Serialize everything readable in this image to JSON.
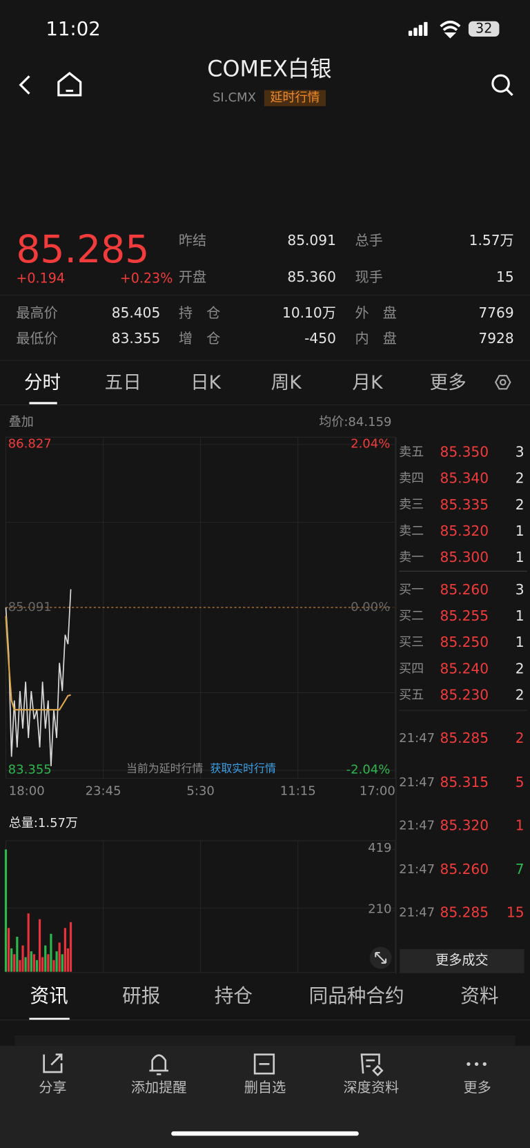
{
  "status_bar": {
    "time": "11:02",
    "battery": "32"
  },
  "header": {
    "title": "COMEX白银",
    "code": "SI.CMX",
    "badge": "延时行情"
  },
  "quote": {
    "price": "85.285",
    "change": "+0.194",
    "change_pct": "+0.23%",
    "stats": [
      {
        "label": "昨结",
        "value": "85.091"
      },
      {
        "label": "总手",
        "value": "1.57万"
      },
      {
        "label": "开盘",
        "value": "85.360"
      },
      {
        "label": "现手",
        "value": "15"
      },
      {
        "label": "最高价",
        "value": "85.405"
      },
      {
        "label": "持　仓",
        "value": "10.10万"
      },
      {
        "label": "外　盘",
        "value": "7769"
      },
      {
        "label": "最低价",
        "value": "83.355"
      },
      {
        "label": "增　仓",
        "value": "-450"
      },
      {
        "label": "内　盘",
        "value": "7928"
      }
    ]
  },
  "chart_tabs": [
    "分时",
    "五日",
    "日K",
    "周K",
    "月K",
    "更多"
  ],
  "price_chart": {
    "type": "line",
    "overlay_label": "叠加",
    "avg_label": "均价:84.159",
    "notice": "当前为延时行情",
    "notice_link": "获取实时行情",
    "x": [
      0,
      10,
      20,
      30,
      40,
      50,
      60,
      70,
      80,
      90,
      100,
      110,
      120,
      130,
      140,
      150,
      160,
      170,
      180,
      190,
      200,
      210,
      220,
      230
    ],
    "values": [
      85.09,
      84.6,
      83.5,
      84.1,
      83.6,
      84.2,
      83.8,
      84.3,
      83.7,
      84.2,
      83.9,
      84.0,
      83.6,
      84.3,
      83.8,
      84.1,
      83.4,
      84.0,
      83.7,
      84.5,
      84.2,
      84.8,
      84.7,
      85.285
    ],
    "avg_values": [
      85.0,
      84.5,
      84.1,
      84.0,
      84.0,
      84.0,
      84.0,
      84.0,
      84.0,
      84.0,
      84.0,
      84.0,
      84.0,
      84.0,
      84.0,
      84.0,
      84.0,
      84.0,
      84.0,
      84.0,
      84.05,
      84.1,
      84.15,
      84.159
    ],
    "color": "#d9d9d9",
    "avg_color": "#e0a84a",
    "xlim": [
      0,
      1380
    ],
    "xticks": [
      {
        "value": 0,
        "label": "18:00"
      },
      {
        "value": 345,
        "label": "23:45"
      },
      {
        "value": 690,
        "label": "5:30"
      },
      {
        "value": 1035,
        "label": "11:15"
      },
      {
        "value": 1380,
        "label": "17:00"
      }
    ],
    "ylim": [
      83.355,
      86.827
    ],
    "yticks": [
      86.827,
      85.091,
      83.355
    ],
    "y2lim": [
      -2.04,
      2.04
    ],
    "y2ticks": [
      {
        "value": 2.04,
        "label": "2.04%"
      },
      {
        "value": 0,
        "label": "0.00%"
      },
      {
        "value": -2.04,
        "label": "-2.04%"
      }
    ]
  },
  "volume_chart": {
    "type": "bar",
    "title": "总量:1.57万",
    "values": [
      419,
      150,
      80,
      60,
      120,
      40,
      90,
      50,
      200,
      70,
      60,
      40,
      180,
      50,
      90,
      60,
      130,
      40,
      70,
      100,
      60,
      150,
      80,
      170
    ],
    "colors": [
      "#2db84d",
      "#e8333c",
      "#2db84d",
      "#e8333c",
      "#2db84d",
      "#e8333c",
      "#e8333c",
      "#2db84d",
      "#e8333c",
      "#2db84d",
      "#e8333c",
      "#2db84d",
      "#e8333c",
      "#e8333c",
      "#2db84d",
      "#e8333c",
      "#2db84d",
      "#e8333c",
      "#2db84d",
      "#e8333c",
      "#2db84d",
      "#e8333c",
      "#e8333c",
      "#e8333c"
    ],
    "ylim": [
      0,
      419
    ],
    "yticks": [
      210,
      419
    ]
  },
  "order_book": {
    "asks": [
      {
        "label": "卖五",
        "price": "85.350",
        "qty": "3"
      },
      {
        "label": "卖四",
        "price": "85.340",
        "qty": "2"
      },
      {
        "label": "卖三",
        "price": "85.335",
        "qty": "2"
      },
      {
        "label": "卖二",
        "price": "85.320",
        "qty": "1"
      },
      {
        "label": "卖一",
        "price": "85.300",
        "qty": "1"
      }
    ],
    "bids": [
      {
        "label": "买一",
        "price": "85.260",
        "qty": "3"
      },
      {
        "label": "买二",
        "price": "85.255",
        "qty": "1"
      },
      {
        "label": "买三",
        "price": "85.250",
        "qty": "1"
      },
      {
        "label": "买四",
        "price": "85.240",
        "qty": "2"
      },
      {
        "label": "买五",
        "price": "85.230",
        "qty": "2"
      }
    ],
    "trades": [
      {
        "time": "21:47",
        "price": "85.285",
        "qty": "2",
        "color": "#f23b3b"
      },
      {
        "time": "21:47",
        "price": "85.315",
        "qty": "5",
        "color": "#f23b3b"
      },
      {
        "time": "21:47",
        "price": "85.320",
        "qty": "1",
        "color": "#f23b3b"
      },
      {
        "time": "21:47",
        "price": "85.260",
        "qty": "7",
        "color": "#2db84d"
      },
      {
        "time": "21:47",
        "price": "85.285",
        "qty": "15",
        "color": "#f23b3b"
      }
    ],
    "more_button": "更多成交"
  },
  "bottom_tabs": [
    "资讯",
    "研报",
    "持仓",
    "同品种合约",
    "资料"
  ],
  "toolbar": [
    "分享",
    "添加提醒",
    "删自选",
    "深度资料",
    "更多"
  ]
}
